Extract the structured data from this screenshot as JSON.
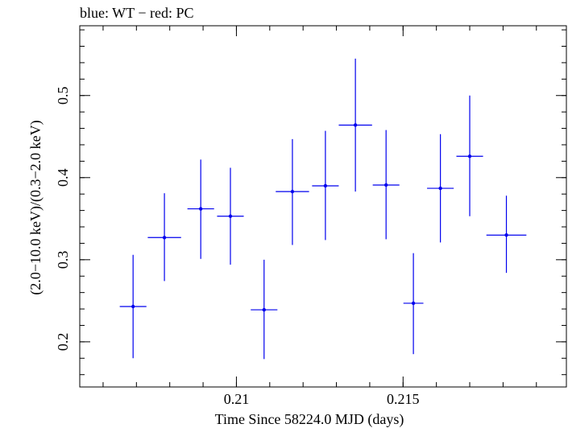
{
  "chart_data": {
    "type": "scatter",
    "title": "blue: WT − red: PC",
    "xlabel": "Time Since 58224.0 MJD (days)",
    "ylabel": "(2.0−10.0 keV)/(0.3−2.0 keV)",
    "xlim": [
      0.2053,
      0.2199
    ],
    "ylim": [
      0.145,
      0.585
    ],
    "x_ticks": [
      {
        "value": 0.21,
        "label": "0.21"
      },
      {
        "value": 0.215,
        "label": "0.215"
      }
    ],
    "y_ticks": [
      {
        "value": 0.2,
        "label": "0.2"
      },
      {
        "value": 0.3,
        "label": "0.3"
      },
      {
        "value": 0.4,
        "label": "0.4"
      },
      {
        "value": 0.5,
        "label": "0.5"
      }
    ],
    "x_minor_step": 0.001,
    "y_minor_step": 0.02,
    "grid": false,
    "colors": {
      "series": "#0000ee",
      "axes": "#000000"
    },
    "series": [
      {
        "color": "#0000ee",
        "points": [
          {
            "x": 0.2069,
            "xerr": 0.0004,
            "y": 0.243,
            "ylo": 0.18,
            "yhi": 0.306
          },
          {
            "x": 0.20784,
            "xerr": 0.0005,
            "y": 0.327,
            "ylo": 0.274,
            "yhi": 0.381
          },
          {
            "x": 0.20893,
            "xerr": 0.0004,
            "y": 0.362,
            "ylo": 0.301,
            "yhi": 0.422
          },
          {
            "x": 0.20982,
            "xerr": 0.0004,
            "y": 0.353,
            "ylo": 0.294,
            "yhi": 0.412
          },
          {
            "x": 0.21083,
            "xerr": 0.0004,
            "y": 0.239,
            "ylo": 0.179,
            "yhi": 0.3
          },
          {
            "x": 0.21168,
            "xerr": 0.0005,
            "y": 0.383,
            "ylo": 0.318,
            "yhi": 0.447
          },
          {
            "x": 0.21267,
            "xerr": 0.0004,
            "y": 0.39,
            "ylo": 0.324,
            "yhi": 0.457
          },
          {
            "x": 0.21357,
            "xerr": 0.0005,
            "y": 0.464,
            "ylo": 0.383,
            "yhi": 0.545
          },
          {
            "x": 0.21449,
            "xerr": 0.0004,
            "y": 0.391,
            "ylo": 0.325,
            "yhi": 0.458
          },
          {
            "x": 0.21531,
            "xerr": 0.0003,
            "y": 0.247,
            "ylo": 0.185,
            "yhi": 0.308
          },
          {
            "x": 0.21612,
            "xerr": 0.0004,
            "y": 0.387,
            "ylo": 0.321,
            "yhi": 0.453
          },
          {
            "x": 0.217,
            "xerr": 0.0004,
            "y": 0.426,
            "ylo": 0.353,
            "yhi": 0.5
          },
          {
            "x": 0.2181,
            "xerr": 0.0006,
            "y": 0.33,
            "ylo": 0.284,
            "yhi": 0.378
          }
        ]
      }
    ]
  }
}
